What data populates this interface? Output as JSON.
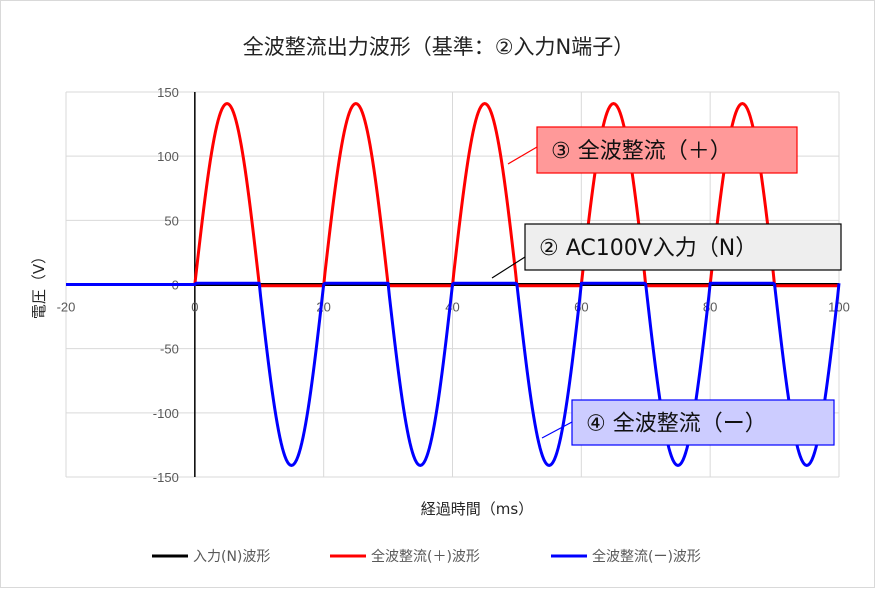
{
  "chart_data": {
    "type": "line",
    "title": "全波整流出力波形（基準：②入力N端子）",
    "xlabel": "経過時間（ms）",
    "ylabel": "電圧（V）",
    "xlim": [
      -20,
      100
    ],
    "ylim": [
      -150,
      150
    ],
    "x_ticks": [
      "-20",
      "0",
      "20",
      "40",
      "60",
      "80",
      "100"
    ],
    "y_ticks": [
      "150",
      "100",
      "50",
      "0",
      "-50",
      "-100",
      "-150"
    ],
    "grid": true,
    "legend_position": "bottom",
    "series": [
      {
        "name": "入力(N)波形",
        "color": "#000000",
        "description": "flat near 0 V",
        "amplitude": 0,
        "period_ms": 20,
        "polarity": "zero"
      },
      {
        "name": "全波整流(＋)波形",
        "color": "#ff0000",
        "amplitude": 141,
        "period_ms": 20,
        "polarity": "positive-half"
      },
      {
        "name": "全波整流(ー)波形",
        "color": "#0000ff",
        "amplitude": 141,
        "period_ms": 20,
        "polarity": "negative-half"
      }
    ],
    "annotations": [
      {
        "text": "③ 全波整流（＋）",
        "fill": "#ff9999",
        "stroke": "#ff0000"
      },
      {
        "text": "② AC100V入力（N）",
        "fill": "#eeeeee",
        "stroke": "#000000"
      },
      {
        "text": "④ 全波整流（ー）",
        "fill": "#ccccff",
        "stroke": "#0000ff"
      }
    ]
  }
}
